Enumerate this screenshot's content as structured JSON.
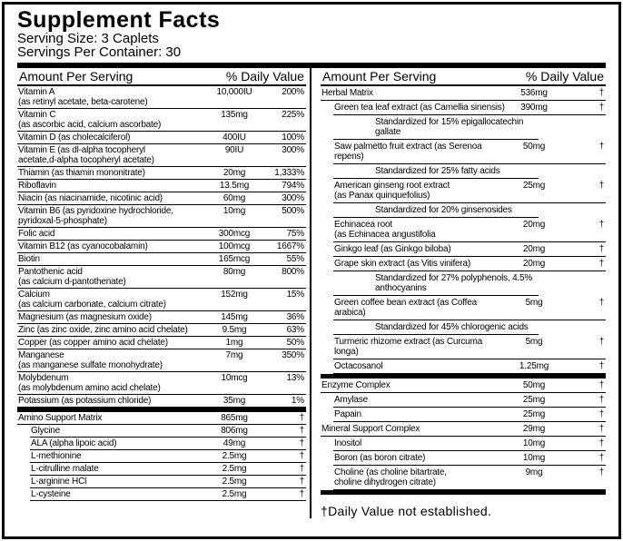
{
  "title": "Supplement Facts",
  "serving_size": "Serving Size: 3 Caplets",
  "servings_per_container": "Servings Per Container: 30",
  "left": {
    "header": [
      "Amount Per Serving",
      "% Daily Value"
    ],
    "sections": [
      {
        "rows": [
          {
            "name": "Vitamin A",
            "detail": "(as retinyl acetate, beta-carotene)",
            "amount": "10,000IU",
            "dv": "200%"
          },
          {
            "name": "Vitamin C",
            "detail": "(as ascorbic acid, calcium ascorbate)",
            "amount": "135mg",
            "dv": "225%"
          },
          {
            "name": "Vitamin D (as cholecalciferol)",
            "amount": "400IU",
            "dv": "100%"
          },
          {
            "name": "Vitamin E (as dl-alpha tocopheryl",
            "detail": "acetate,d-alpha tocopheryl acetate)",
            "amount": "90IU",
            "dv": "300%"
          },
          {
            "name": "Thiamin (as thiamin mononitrate)",
            "amount": "20mg",
            "dv": "1,333%"
          },
          {
            "name": "Riboflavin",
            "amount": "13.5mg",
            "dv": "794%"
          },
          {
            "name": "Niacin (as niacinamide, nicotinic acid)",
            "amount": "60mg",
            "dv": "300%"
          },
          {
            "name": "Vitamin B6 (as pyridoxine hydrochloride,",
            "detail": "pyridoxal-5-phosphate)",
            "amount": "10mg",
            "dv": "500%"
          },
          {
            "name": "Folic acid",
            "amount": "300mcg",
            "dv": "75%"
          },
          {
            "name": "Vitamin B12 (as cyanocobalamin)",
            "amount": "100mcg",
            "dv": "1667%"
          },
          {
            "name": "Biotin",
            "amount": "165mcg",
            "dv": "55%"
          },
          {
            "name": "Pantothenic acid",
            "detail": "(as calcium d-pantothenate)",
            "amount": "80mg",
            "dv": "800%"
          },
          {
            "name": "Calcium",
            "detail": "(as calcium carbonate, calcium citrate)",
            "amount": "152mg",
            "dv": "15%"
          },
          {
            "name": "Magnesium (as magnesium oxide)",
            "amount": "145mg",
            "dv": "36%"
          },
          {
            "name": "Zinc (as zinc oxide, zinc amino acid chelate)",
            "amount": "9.5mg",
            "dv": "63%"
          },
          {
            "name": "Copper (as copper amino acid chelate)",
            "amount": "1mg",
            "dv": "50%"
          },
          {
            "name": "Manganese",
            "detail": "(as manganese sulfate monohydrate)",
            "amount": "7mg",
            "dv": "350%"
          },
          {
            "name": "Molybdenum",
            "detail": "(as molybdenum amino acid chelate)",
            "amount": "10mcg",
            "dv": "13%"
          },
          {
            "name": "Potassium (as potassium chloride)",
            "amount": "35mg",
            "dv": "1%"
          }
        ]
      },
      {
        "rows": [
          {
            "name": "Amino Support Matrix",
            "amount": "865mg",
            "dv": "†",
            "ingredients": [
              {
                "name": "Glycine",
                "amount": "806mg",
                "dv": "†"
              },
              {
                "name": "ALA (alpha lipoic acid)",
                "amount": "49mg",
                "dv": "†"
              },
              {
                "name": "L-methionine",
                "amount": "2.5mg",
                "dv": "†"
              },
              {
                "name": "L-citrulline malate",
                "amount": "2.5mg",
                "dv": "†"
              },
              {
                "name": "L-arginine HCl",
                "amount": "2.5mg",
                "dv": "†"
              },
              {
                "name": "L-cysteine",
                "amount": "2.5mg",
                "dv": "†"
              }
            ]
          }
        ]
      }
    ]
  },
  "right": {
    "header": [
      "Amount Per Serving",
      "% Daily Value"
    ],
    "sections": [
      {
        "rows": [
          {
            "name": "Herbal Matrix",
            "amount": "536mg",
            "dv": "†",
            "ingredients": [
              {
                "name": "Green tea leaf extract (as Camellia sinensis)",
                "amount": "390mg",
                "dv": "†",
                "note": "Standardized for 15% epigallocatechin gallate"
              },
              {
                "name": "Saw palmetto fruit extract (as Serenoa repens)",
                "amount": "50mg",
                "dv": "†",
                "note": "Standardized for 25% fatty acids"
              },
              {
                "name": "American ginseng root extract",
                "detail": "(as Panax quinquefolius)",
                "amount": "25mg",
                "dv": "†",
                "note": "Standardized for 20% ginsenosides"
              },
              {
                "name": "Echinacea root",
                "detail": "(as Echinacea angustifolia",
                "amount": "20mg",
                "dv": "†"
              },
              {
                "name": "Ginkgo leaf (as Ginkgo biloba)",
                "amount": "20mg",
                "dv": "†"
              },
              {
                "name": "Grape skin extract (as Vitis vinifera)",
                "amount": "20mg",
                "dv": "†",
                "note": "Standardized for 27% polyphenols, 4.5% anthocyanins"
              },
              {
                "name": "Green coffee bean extract (as Coffea arabica)",
                "amount": "5mg",
                "dv": "†",
                "note": "Standardized for 45% chlorogenic acids"
              },
              {
                "name": "Turmeric rhizome extract (as Curcuma longa)",
                "amount": "5mg",
                "dv": "†"
              },
              {
                "name": "Octacosanol",
                "amount": "1.25mg",
                "dv": "†"
              }
            ]
          }
        ]
      },
      {
        "rows": [
          {
            "name": "Enzyme Complex",
            "amount": "50mg",
            "dv": "†",
            "ingredients": [
              {
                "name": "Amylase",
                "amount": "25mg",
                "dv": "†"
              },
              {
                "name": "Papain",
                "amount": "25mg",
                "dv": "†"
              }
            ]
          },
          {
            "name": "Mineral Support Complex",
            "amount": "29mg",
            "dv": "†",
            "ingredients": [
              {
                "name": "Inositol",
                "amount": "10mg",
                "dv": "†"
              },
              {
                "name": "Boron (as boron citrate)",
                "amount": "10mg",
                "dv": "†"
              },
              {
                "name": "Choline (as choline bitartrate,",
                "detail": "choline dihydrogen citrate)",
                "amount": "9mg",
                "dv": "†"
              }
            ]
          }
        ]
      }
    ],
    "footnote": "†Daily Value not established."
  }
}
